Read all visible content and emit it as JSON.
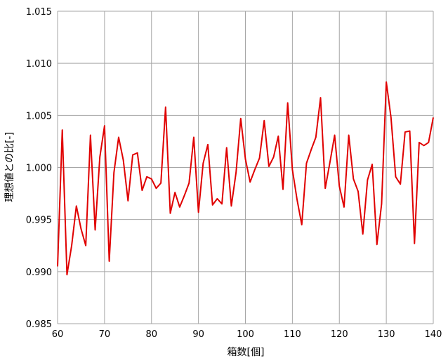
{
  "chart_data": {
    "type": "line",
    "title": "",
    "xlabel": "箱数[個]",
    "ylabel": "理想値との比[-]",
    "xlim": [
      60,
      140
    ],
    "ylim": [
      0.985,
      1.015
    ],
    "x_ticks": [
      60,
      70,
      80,
      90,
      100,
      110,
      120,
      130,
      140
    ],
    "x_tick_labels": [
      "60",
      "70",
      "80",
      "90",
      "100",
      "110",
      "120",
      "130",
      "140"
    ],
    "y_ticks": [
      0.985,
      0.99,
      0.995,
      1.0,
      1.005,
      1.01,
      1.015
    ],
    "y_tick_labels": [
      "0.985",
      "0.990",
      "0.995",
      "1.000",
      "1.005",
      "1.010",
      "1.015"
    ],
    "grid": true,
    "legend": "none",
    "series": [
      {
        "color": "#e00000",
        "x": [
          60,
          61,
          62,
          63,
          64,
          65,
          66,
          67,
          68,
          69,
          70,
          71,
          72,
          73,
          74,
          75,
          76,
          77,
          78,
          79,
          80,
          81,
          82,
          83,
          84,
          85,
          86,
          87,
          88,
          89,
          90,
          91,
          92,
          93,
          94,
          95,
          96,
          97,
          98,
          99,
          100,
          101,
          102,
          103,
          104,
          105,
          106,
          107,
          108,
          109,
          110,
          111,
          112,
          113,
          114,
          115,
          116,
          117,
          118,
          119,
          120,
          121,
          122,
          123,
          124,
          125,
          126,
          127,
          128,
          129,
          130,
          131,
          132,
          133,
          134,
          135,
          136,
          137,
          138,
          139,
          140
        ],
        "values": [
          0.9905,
          1.0036,
          0.9897,
          0.9925,
          0.9963,
          0.9941,
          0.9925,
          1.0031,
          0.994,
          1.001,
          1.004,
          0.991,
          0.9995,
          1.0029,
          1.0007,
          0.9968,
          1.0012,
          1.0014,
          0.9978,
          0.9991,
          0.9989,
          0.998,
          0.9985,
          1.0058,
          0.9956,
          0.9976,
          0.9962,
          0.9973,
          0.9985,
          1.0029,
          0.9957,
          1.0004,
          1.0022,
          0.9964,
          0.997,
          0.9965,
          1.0019,
          0.9963,
          0.9995,
          1.0047,
          1.0008,
          0.9986,
          0.9998,
          1.0009,
          1.0045,
          1.0001,
          1.001,
          1.003,
          0.9979,
          1.0062,
          0.9998,
          0.9969,
          0.9945,
          1.0004,
          1.0017,
          1.0029,
          1.0067,
          0.998,
          1.0005,
          1.0031,
          0.9982,
          0.9962,
          1.0031,
          0.9989,
          0.9977,
          0.9936,
          0.9988,
          1.0003,
          0.9926,
          0.9965,
          1.0082,
          1.0048,
          0.9991,
          0.9984,
          1.0034,
          1.0035,
          0.9927,
          1.0024,
          1.0021,
          1.0024,
          1.0048
        ]
      }
    ]
  }
}
